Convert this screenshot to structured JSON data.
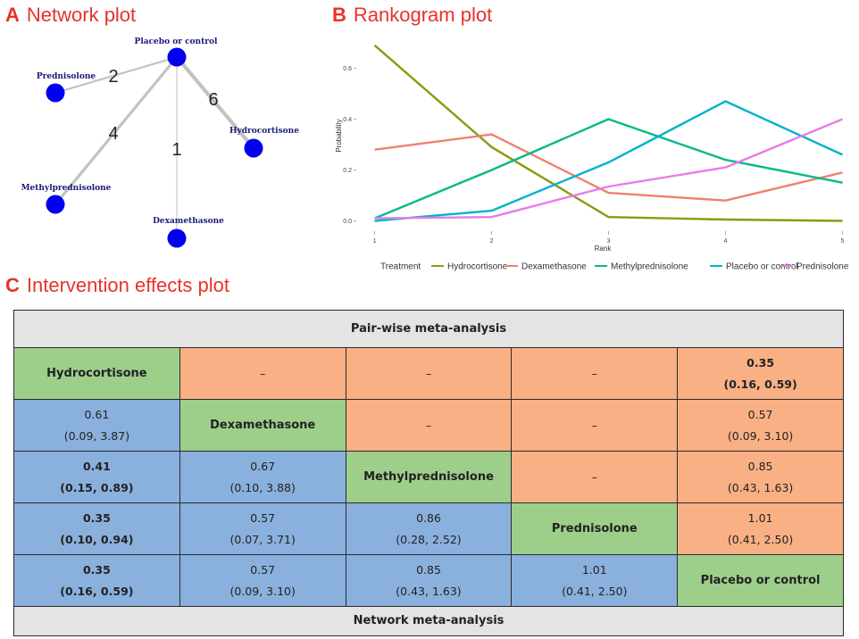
{
  "panels": {
    "a_letter": "A",
    "a_title": "Network plot",
    "b_letter": "B",
    "b_title": "Rankogram plot",
    "c_letter": "C",
    "c_title": "Intervention effects plot"
  },
  "network": {
    "nodes": [
      {
        "id": "placebo",
        "label": "Placebo or control"
      },
      {
        "id": "prednisolone",
        "label": "Prednisolone"
      },
      {
        "id": "hydrocortisone",
        "label": "Hydrocortisone"
      },
      {
        "id": "methylprednisolone",
        "label": "Methylprednisolone"
      },
      {
        "id": "dexamethasone",
        "label": "Dexamethasone"
      }
    ],
    "edges": [
      {
        "from": "placebo",
        "to": "prednisolone",
        "studies": 2
      },
      {
        "from": "placebo",
        "to": "hydrocortisone",
        "studies": 6
      },
      {
        "from": "placebo",
        "to": "methylprednisolone",
        "studies": 4
      },
      {
        "from": "placebo",
        "to": "dexamethasone",
        "studies": 1
      }
    ],
    "node_color": "#0000ee"
  },
  "chart_data": {
    "type": "line",
    "title": "Rankogram plot",
    "xlabel": "Rank",
    "ylabel": "Probability",
    "x": [
      1,
      2,
      3,
      4,
      5
    ],
    "xlim": [
      0.85,
      5.05
    ],
    "ylim": [
      -0.03,
      0.7
    ],
    "x_ticks": [
      "1",
      "2",
      "3",
      "4",
      "5"
    ],
    "y_ticks": [
      {
        "v": 0.0,
        "label": "0.0"
      },
      {
        "v": 0.2,
        "label": "0.2"
      },
      {
        "v": 0.4,
        "label": "0.4"
      },
      {
        "v": 0.6,
        "label": "0.6"
      }
    ],
    "legend_title": "Treatment",
    "legend_position": "bottom",
    "series": [
      {
        "name": "Hydrocortisone",
        "color": "#8b9a12",
        "values": [
          0.69,
          0.29,
          0.015,
          0.005,
          0.0
        ]
      },
      {
        "name": "Dexamethasone",
        "color": "#f08070",
        "values": [
          0.28,
          0.34,
          0.11,
          0.08,
          0.19
        ]
      },
      {
        "name": "Methylprednisolone",
        "color": "#00ba88",
        "values": [
          0.01,
          0.2,
          0.4,
          0.24,
          0.15
        ]
      },
      {
        "name": "Placebo or control",
        "color": "#00b3cc",
        "values": [
          0.0,
          0.04,
          0.23,
          0.47,
          0.26
        ]
      },
      {
        "name": "Prednisolone",
        "color": "#e67ce8",
        "values": [
          0.01,
          0.015,
          0.135,
          0.21,
          0.4
        ]
      }
    ]
  },
  "matrix": {
    "top_header": "Pair-wise meta-analysis",
    "bottom_header": "Network meta-analysis",
    "rows": [
      [
        {
          "t": "diag",
          "v": "Hydrocortisone"
        },
        {
          "t": "up",
          "v": "–"
        },
        {
          "t": "up",
          "v": "–"
        },
        {
          "t": "up",
          "v": "–"
        },
        {
          "t": "up",
          "v": "0.35",
          "ci": "(0.16, 0.59)",
          "bold": true
        }
      ],
      [
        {
          "t": "low",
          "v": "0.61",
          "ci": "(0.09, 3.87)"
        },
        {
          "t": "diag",
          "v": "Dexamethasone"
        },
        {
          "t": "up",
          "v": "–"
        },
        {
          "t": "up",
          "v": "–"
        },
        {
          "t": "up",
          "v": "0.57",
          "ci": "(0.09, 3.10)"
        }
      ],
      [
        {
          "t": "low",
          "v": "0.41",
          "ci": "(0.15, 0.89)",
          "bold": true
        },
        {
          "t": "low",
          "v": "0.67",
          "ci": "(0.10, 3.88)"
        },
        {
          "t": "diag",
          "v": "Methylprednisolone"
        },
        {
          "t": "up",
          "v": "–"
        },
        {
          "t": "up",
          "v": "0.85",
          "ci": "(0.43, 1.63)"
        }
      ],
      [
        {
          "t": "low",
          "v": "0.35",
          "ci": "(0.10, 0.94)",
          "bold": true
        },
        {
          "t": "low",
          "v": "0.57",
          "ci": "(0.07, 3.71)"
        },
        {
          "t": "low",
          "v": "0.86",
          "ci": "(0.28, 2.52)"
        },
        {
          "t": "diag",
          "v": "Prednisolone"
        },
        {
          "t": "up",
          "v": "1.01",
          "ci": "(0.41, 2.50)"
        }
      ],
      [
        {
          "t": "low",
          "v": "0.35",
          "ci": "(0.16, 0.59)",
          "bold": true
        },
        {
          "t": "low",
          "v": "0.57",
          "ci": "(0.09, 3.10)"
        },
        {
          "t": "low",
          "v": "0.85",
          "ci": "(0.43, 1.63)"
        },
        {
          "t": "low",
          "v": "1.01",
          "ci": "(0.41, 2.50)"
        },
        {
          "t": "diag",
          "v": "Placebo or control"
        }
      ]
    ]
  }
}
